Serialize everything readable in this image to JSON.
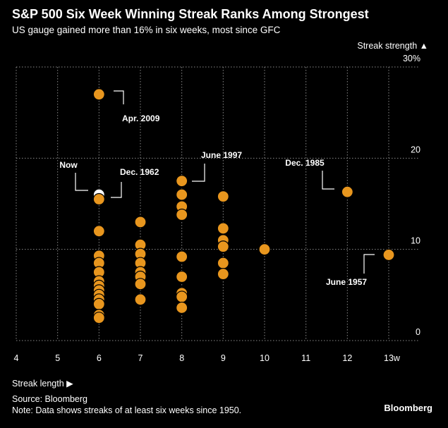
{
  "header": {
    "title": "S&P 500 Six Week Winning Streak Ranks Among Strongest",
    "subtitle": "US gauge gained more than 16% in six weeks, most since GFC"
  },
  "footer": {
    "source": "Source: Bloomberg",
    "note": "Note: Data shows streaks of at least six weeks since 1950.",
    "brand": "Bloomberg"
  },
  "chart_data": {
    "type": "scatter",
    "xlabel": "Streak length ▶",
    "ylabel": "Streak strength ▲",
    "xlim": [
      4,
      13
    ],
    "ylim": [
      0,
      30
    ],
    "x_ticks": [
      "4",
      "5",
      "6",
      "7",
      "8",
      "9",
      "10",
      "11",
      "12",
      "13w"
    ],
    "y_ticks": [
      "0",
      "10",
      "20",
      "30%"
    ],
    "grid": true,
    "points": [
      {
        "x": 6,
        "y": 27.0
      },
      {
        "x": 6,
        "y": 16.0
      },
      {
        "x": 6,
        "y": 15.5
      },
      {
        "x": 6,
        "y": 12.0
      },
      {
        "x": 6,
        "y": 9.3
      },
      {
        "x": 6,
        "y": 8.5
      },
      {
        "x": 6,
        "y": 7.5
      },
      {
        "x": 6,
        "y": 6.5
      },
      {
        "x": 6,
        "y": 6.0
      },
      {
        "x": 6,
        "y": 5.5
      },
      {
        "x": 6,
        "y": 5.0
      },
      {
        "x": 6,
        "y": 4.5
      },
      {
        "x": 6,
        "y": 4.0
      },
      {
        "x": 6,
        "y": 2.8
      },
      {
        "x": 6,
        "y": 2.5
      },
      {
        "x": 7,
        "y": 13.0
      },
      {
        "x": 7,
        "y": 10.5
      },
      {
        "x": 7,
        "y": 9.5
      },
      {
        "x": 7,
        "y": 8.5
      },
      {
        "x": 7,
        "y": 7.5
      },
      {
        "x": 7,
        "y": 7.0
      },
      {
        "x": 7,
        "y": 6.2
      },
      {
        "x": 7,
        "y": 4.5
      },
      {
        "x": 8,
        "y": 17.5
      },
      {
        "x": 8,
        "y": 16.0
      },
      {
        "x": 8,
        "y": 14.7
      },
      {
        "x": 8,
        "y": 13.8
      },
      {
        "x": 8,
        "y": 9.2
      },
      {
        "x": 8,
        "y": 7.0
      },
      {
        "x": 8,
        "y": 5.2
      },
      {
        "x": 8,
        "y": 4.8
      },
      {
        "x": 8,
        "y": 3.6
      },
      {
        "x": 9,
        "y": 15.8
      },
      {
        "x": 9,
        "y": 12.3
      },
      {
        "x": 9,
        "y": 11.0
      },
      {
        "x": 9,
        "y": 10.3
      },
      {
        "x": 9,
        "y": 8.5
      },
      {
        "x": 9,
        "y": 7.3
      },
      {
        "x": 10,
        "y": 10.0
      },
      {
        "x": 12,
        "y": 16.3
      },
      {
        "x": 13,
        "y": 9.4
      }
    ],
    "annotations": [
      {
        "text": "Apr. 2009",
        "x": 6,
        "y": 27.0
      },
      {
        "text": "Now",
        "x": 6,
        "y": 16.0
      },
      {
        "text": "Dec. 1962",
        "x": 6,
        "y": 15.5
      },
      {
        "text": "June 1997",
        "x": 8,
        "y": 17.5
      },
      {
        "text": "Dec. 1985",
        "x": 12,
        "y": 16.3
      },
      {
        "text": "June 1957",
        "x": 13,
        "y": 9.4
      }
    ],
    "colors": {
      "point_fill": "#E8961E",
      "now_fill": "#FFFFFF",
      "point_stroke": "#000000",
      "grid": "#8a8a8a",
      "background": "#000000",
      "text": "#FFFFFF"
    }
  }
}
